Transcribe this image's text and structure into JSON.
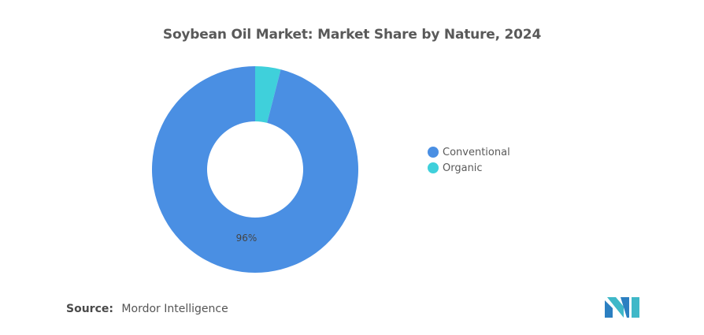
{
  "title": "Soybean Oil Market: Market Share by Nature, 2024",
  "source": {
    "label": "Source:",
    "value": "Mordor Intelligence"
  },
  "logo_icon": "mordor-intelligence-logo",
  "chart_data": {
    "type": "pie",
    "title": "Soybean Oil Market: Market Share by Nature, 2024",
    "donut": true,
    "legend_position": "right",
    "series": [
      {
        "name": "Conventional",
        "value": 96,
        "color": "#4a8fe3",
        "label": "96%"
      },
      {
        "name": "Organic",
        "value": 4,
        "color": "#3fd0db",
        "label": ""
      }
    ]
  }
}
